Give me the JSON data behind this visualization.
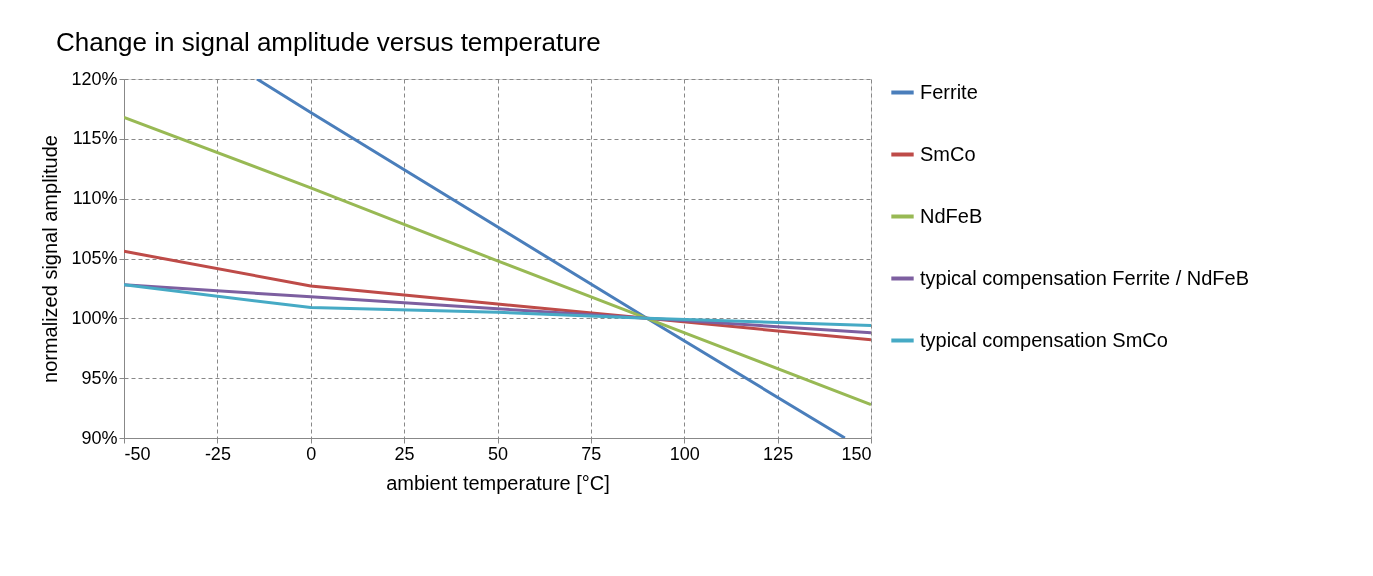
{
  "chart_data": {
    "type": "line",
    "title": "Change in signal amplitude versus temperature",
    "xlabel": "ambient temperature [°C]",
    "ylabel": "normalized signal amplitude",
    "xlim": [
      -50,
      150
    ],
    "xticks": [
      -50,
      -25,
      0,
      25,
      50,
      75,
      100,
      125,
      150
    ],
    "ylim": [
      90,
      120
    ],
    "yticks": [
      {
        "value": 90,
        "label": "90%"
      },
      {
        "value": 95,
        "label": "95%"
      },
      {
        "value": 100,
        "label": "100%"
      },
      {
        "value": 105,
        "label": "105%"
      },
      {
        "value": 110,
        "label": "110%"
      },
      {
        "value": 115,
        "label": "115%"
      },
      {
        "value": 120,
        "label": "120%"
      }
    ],
    "grid": true,
    "legend": "right",
    "line_style": "solid",
    "series": [
      {
        "name": "Ferrite",
        "color": "#4a7ebb",
        "x": [
          -14.4,
          0,
          90,
          143
        ],
        "values": [
          120,
          117.2,
          100,
          90
        ]
      },
      {
        "name": "SmCo",
        "color": "#be4b48",
        "x": [
          -50,
          0,
          50,
          90,
          150
        ],
        "values": [
          105.6,
          102.7,
          101.2,
          100,
          98.2
        ]
      },
      {
        "name": "NdFeB",
        "color": "#98b954",
        "x": [
          -50,
          0,
          50,
          90,
          150
        ],
        "values": [
          116.8,
          110.9,
          104.8,
          100,
          92.8
        ]
      },
      {
        "name": "typical compensation Ferrite / NdFeB",
        "color": "#7d5fa0",
        "x": [
          -50,
          0,
          50,
          90,
          150
        ],
        "values": [
          102.8,
          101.8,
          100.8,
          100,
          98.8
        ]
      },
      {
        "name": "typical compensation SmCo",
        "color": "#46aac5",
        "x": [
          -50,
          0,
          50,
          90,
          150
        ],
        "values": [
          102.8,
          100.9,
          100.5,
          100,
          99.4
        ]
      }
    ]
  }
}
